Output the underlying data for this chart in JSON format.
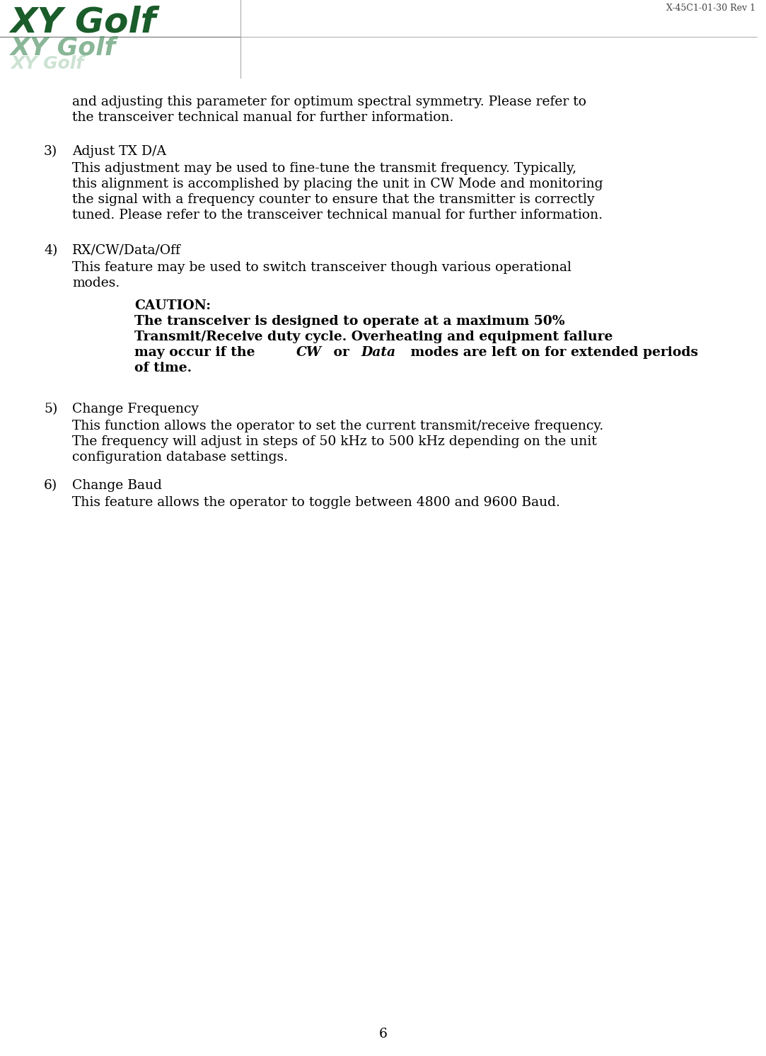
{
  "header_doc_ref": "X-45C1-01-30 Rev 1",
  "logo_text_main": "XY Golf",
  "logo_color_main": "#1a5c2a",
  "page_number": "6",
  "background_color": "#ffffff",
  "text_color": "#000000",
  "intro_lines": [
    "and adjusting this parameter for optimum spectral symmetry. Please refer to",
    "the transceiver technical manual for further information."
  ],
  "sections": [
    {
      "number": "3)",
      "title": "Adjust TX D/A",
      "body": [
        "This adjustment may be used to fine-tune the transmit frequency. Typically,",
        "this alignment is accomplished by placing the unit in CW Mode and monitoring",
        "the signal with a frequency counter to ensure that the transmitter is correctly",
        "tuned. Please refer to the transceiver technical manual for further information."
      ],
      "caution": null,
      "extra_gap_after": true
    },
    {
      "number": "4)",
      "title": "RX/CW/Data/Off",
      "body": [
        "This feature may be used to switch transceiver though various operational",
        "modes."
      ],
      "caution": {
        "title": "CAUTION:",
        "line1": "The transceiver is designed to operate at a maximum 50%",
        "line2": "Transmit/Receive duty cycle. Overheating and equipment failure",
        "line3_parts": [
          "may occur if the ",
          "CW",
          " or ",
          "Data",
          " modes are left on for extended periods"
        ],
        "line4": "of time."
      },
      "extra_gap_after": true
    },
    {
      "number": "5)",
      "title": "Change Frequency",
      "body": [
        "This function allows the operator to set the current transmit/receive frequency.",
        "The frequency will adjust in steps of 50 kHz to 500 kHz depending on the unit",
        "configuration database settings."
      ],
      "caution": null,
      "extra_gap_after": false
    },
    {
      "number": "6)",
      "title": "Change Baud",
      "body": [
        "This feature allows the operator to toggle between 4800 and 9600 Baud."
      ],
      "caution": null,
      "extra_gap_after": false
    }
  ]
}
